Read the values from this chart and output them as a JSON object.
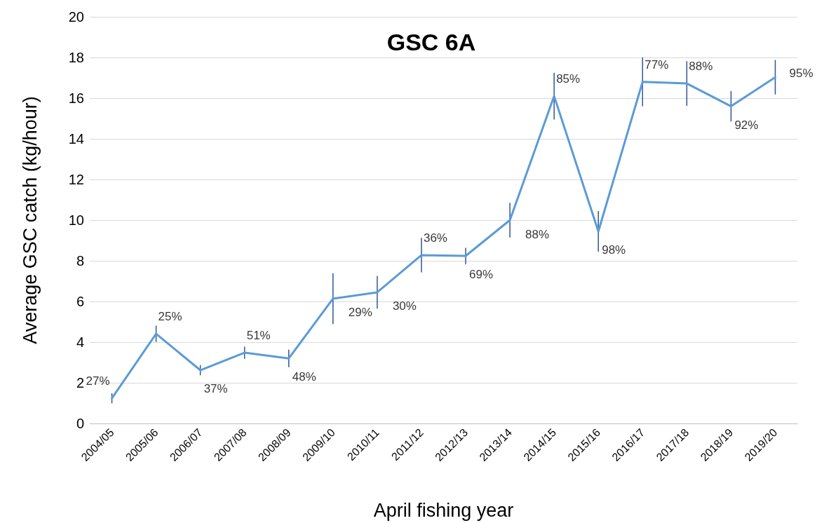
{
  "chart_data": {
    "type": "line",
    "title": "GSC 6A",
    "xlabel": "April fishing year",
    "ylabel": "Average GSC catch (kg/hour)",
    "categories": [
      "2004/05",
      "2005/06",
      "2006/07",
      "2007/08",
      "2008/09",
      "2009/10",
      "2010/11",
      "2011/12",
      "2012/13",
      "2013/14",
      "2014/15",
      "2015/16",
      "2016/17",
      "2017/18",
      "2018/19",
      "2019/20"
    ],
    "series": [
      {
        "color": "#5b9bd5",
        "values": [
          1.24,
          4.41,
          2.62,
          3.48,
          3.2,
          6.14,
          6.45,
          8.28,
          8.24,
          10.0,
          16.1,
          9.45,
          16.8,
          16.72,
          15.6,
          17.03
        ],
        "errors": [
          0.25,
          0.4,
          0.25,
          0.3,
          0.43,
          1.25,
          0.8,
          0.85,
          0.4,
          0.85,
          1.15,
          1.0,
          1.2,
          1.1,
          0.75,
          0.85
        ]
      }
    ],
    "annotations": [
      {
        "text": "27%",
        "x": "2004/05",
        "y": 1.24
      },
      {
        "text": "25%",
        "x": "2005/06",
        "y": 4.41
      },
      {
        "text": "37%",
        "x": "2006/07",
        "y": 2.62
      },
      {
        "text": "51%",
        "x": "2007/08",
        "y": 3.48
      },
      {
        "text": "48%",
        "x": "2008/09",
        "y": 3.2
      },
      {
        "text": "29%",
        "x": "2009/10",
        "y": 6.14
      },
      {
        "text": "30%",
        "x": "2010/11",
        "y": 6.45
      },
      {
        "text": "36%",
        "x": "2011/12",
        "y": 8.28
      },
      {
        "text": "69%",
        "x": "2012/13",
        "y": 8.24
      },
      {
        "text": "88%",
        "x": "2013/14",
        "y": 10.0
      },
      {
        "text": "85%",
        "x": "2014/15",
        "y": 16.1
      },
      {
        "text": "98%",
        "x": "2015/16",
        "y": 9.45
      },
      {
        "text": "77%",
        "x": "2016/17",
        "y": 16.8
      },
      {
        "text": "88%",
        "x": "2017/18",
        "y": 16.72
      },
      {
        "text": "92%",
        "x": "2018/19",
        "y": 15.6
      },
      {
        "text": "95%",
        "x": "2019/20",
        "y": 17.03
      }
    ],
    "ylim": [
      0,
      20
    ],
    "yticks": [
      0,
      2,
      4,
      6,
      8,
      10,
      12,
      14,
      16,
      18,
      20
    ],
    "grid": "y",
    "marker": "none",
    "line_style": "solid"
  }
}
